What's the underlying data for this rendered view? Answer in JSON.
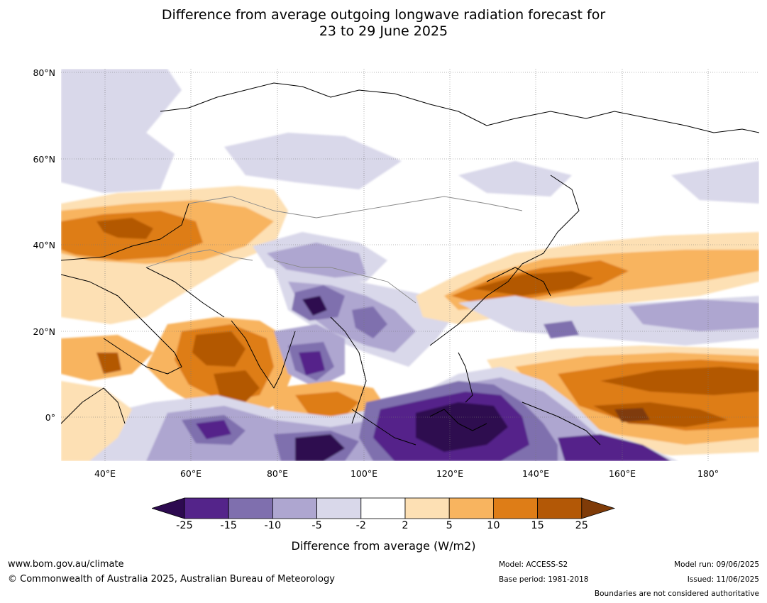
{
  "title_line1": "Difference from average outgoing longwave radiation forecast for",
  "title_line2": "23 to 29 June 2025",
  "lat_labels": [
    "80°N",
    "60°N",
    "40°N",
    "20°N",
    "0°"
  ],
  "lon_labels": [
    "40°E",
    "60°E",
    "80°E",
    "100°E",
    "120°E",
    "140°E",
    "160°E",
    "180°"
  ],
  "colorbar": {
    "ticks": [
      "-25",
      "-15",
      "-10",
      "-5",
      "-2",
      "2",
      "5",
      "10",
      "15",
      "25"
    ],
    "colors": [
      "#2d0a50",
      "#54248a",
      "#7f6fae",
      "#aea6d0",
      "#d9d8ea",
      "#ffffff",
      "#fde0b4",
      "#f8b45f",
      "#de7d17",
      "#b35806",
      "#7f3b08"
    ],
    "label": "Difference from average (W/m2)"
  },
  "footer": {
    "website": "www.bom.gov.au/climate",
    "copyright": "© Commonwealth of Australia 2025, Australian Bureau of Meteorology",
    "model": "Model: ACCESS-S2",
    "base_period": "Base period: 1981-2018",
    "model_run": "Model run: 09/06/2025",
    "issued": "Issued: 11/06/2025",
    "disclaimer": "Boundaries are not considered authoritative"
  }
}
